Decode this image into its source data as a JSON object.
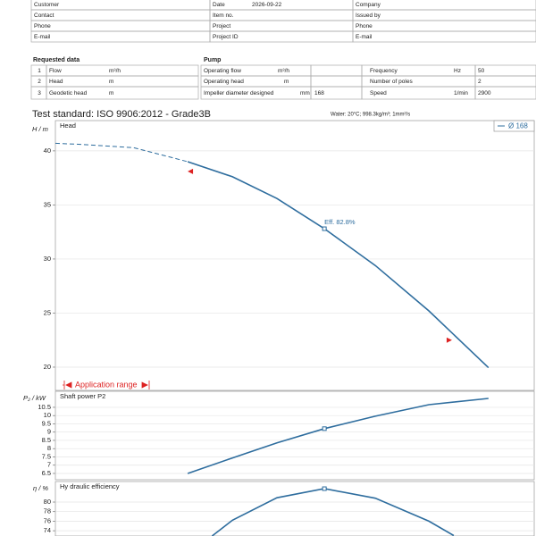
{
  "customer_table": {
    "col1": [
      "Customer",
      "Contact",
      "Phone",
      "E-mail"
    ],
    "col2": [
      "Date",
      "Item no.",
      "Project",
      "Project ID"
    ],
    "date": "2026-09-22",
    "col3": [
      "Company",
      "Issued by",
      "Phone",
      "E-mail"
    ]
  },
  "requested": {
    "title": "Requested data",
    "rows": [
      {
        "number": 1,
        "label": "Flow",
        "unit": "m³/h"
      },
      {
        "number": 2,
        "label": "Head",
        "unit": "m"
      },
      {
        "number": 3,
        "label": "Geodetic head",
        "unit": "m"
      }
    ]
  },
  "pump": {
    "title": "Pump",
    "rows": [
      {
        "label": "Operating flow",
        "unit": "m³/h"
      },
      {
        "label": "Operating head",
        "unit": "m"
      },
      {
        "label": "Impeller diameter designed",
        "unit": "mm",
        "value": 168
      }
    ],
    "right_rows": [
      {
        "label": "Frequency",
        "unit": "Hz",
        "value": 50
      },
      {
        "label": "Number of poles",
        "value": 2
      },
      {
        "label": "Speed",
        "unit": "1/min",
        "value": 2900
      }
    ]
  },
  "test_standard": "Test standard: ISO 9906:2012 - Grade3B",
  "medium": "Water: 20°C; 998.3kg/m³; 1mm²/s",
  "chart_data": [
    {
      "type": "line",
      "title": "Head",
      "y_label": "H / m",
      "xlim": [
        0,
        110
      ],
      "ylim": [
        17.85,
        42.8
      ],
      "yticks": [
        20,
        25,
        30,
        35,
        40
      ],
      "grid": true,
      "legend": "top-right",
      "x": [
        0,
        5.7,
        18,
        30.4,
        40.7,
        50.9,
        61.8,
        73.5,
        85.8,
        99.5
      ],
      "series": [
        {
          "color": "#2e6d9e",
          "style": "dashed",
          "values": [
            40.7,
            40.6,
            40.3,
            39.0,
            null,
            null,
            null,
            null,
            null,
            null
          ]
        },
        {
          "name": "Ø 168",
          "color": "#2e6d9e",
          "style": "solid",
          "values": [
            null,
            null,
            null,
            39.0,
            37.6,
            35.6,
            32.8,
            29.4,
            25.2,
            19.95
          ]
        }
      ],
      "operating_point": {
        "x": 61.8,
        "y": 32.8,
        "label": "Eff.  82.8%"
      },
      "range_markers": [
        {
          "x": 31.0,
          "y": 38.1,
          "direction": "left"
        },
        {
          "x": 90.5,
          "y": 22.5,
          "direction": "right"
        }
      ],
      "range_label": "Application range"
    },
    {
      "type": "line",
      "title": "Shaft power P2",
      "y_label": "P₂ / kW",
      "xlim": [
        0,
        110
      ],
      "ylim": [
        6.12,
        11.47
      ],
      "yticks": [
        6.5,
        7,
        7.5,
        8,
        8.5,
        9,
        9.5,
        10,
        10.5
      ],
      "grid": true,
      "x": [
        30.4,
        40.7,
        50.9,
        61.8,
        73.5,
        85.8,
        99.5
      ],
      "series": [
        {
          "color": "#2e6d9e",
          "style": "solid",
          "values": [
            6.5,
            7.44,
            8.35,
            9.21,
            9.96,
            10.66,
            11.04
          ]
        }
      ],
      "operating_point": {
        "x": 61.8,
        "y": 9.21
      }
    },
    {
      "type": "line",
      "title": "Hy draulic efficiency",
      "y_label": "η / %",
      "xlim": [
        0,
        110
      ],
      "ylim": [
        72.9,
        84.3
      ],
      "yticks": [
        74,
        76,
        78,
        80
      ],
      "grid": true,
      "x": [
        36.0,
        40.7,
        50.9,
        61.8,
        73.5,
        85.8,
        91.5
      ],
      "series": [
        {
          "color": "#2e6d9e",
          "style": "solid",
          "values": [
            72.9,
            76.2,
            80.9,
            82.8,
            80.8,
            76.0,
            73.0
          ]
        }
      ],
      "operating_point": {
        "x": 61.8,
        "y": 82.8
      }
    }
  ]
}
